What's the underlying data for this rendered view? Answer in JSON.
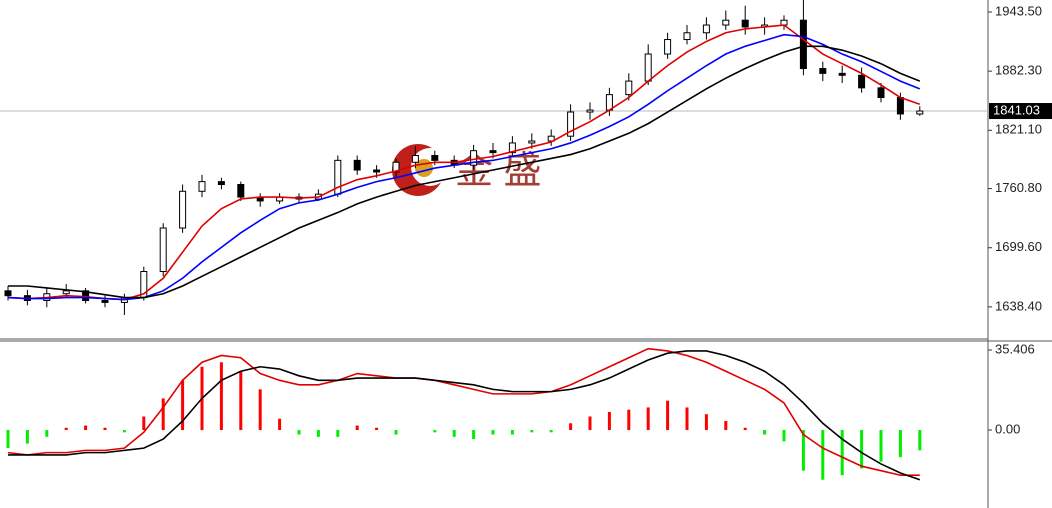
{
  "chart_data": [
    {
      "type": "candlestick",
      "watermark": "金 盛",
      "open": [
        1655,
        1650,
        1645,
        1652,
        1655,
        1645,
        1643,
        1648,
        1675,
        1720,
        1758,
        1768,
        1765,
        1752,
        1748,
        1752,
        1750,
        1755,
        1790,
        1780,
        1778,
        1788,
        1795,
        1790,
        1785,
        1800,
        1798,
        1808,
        1810,
        1815,
        1840,
        1842,
        1858,
        1872,
        1900,
        1915,
        1922,
        1930,
        1935,
        1928,
        1930,
        1935,
        1885,
        1880,
        1878,
        1865,
        1855,
        1838
      ],
      "high": [
        1660,
        1656,
        1658,
        1662,
        1658,
        1650,
        1652,
        1680,
        1725,
        1765,
        1775,
        1772,
        1768,
        1756,
        1756,
        1756,
        1760,
        1795,
        1795,
        1785,
        1792,
        1805,
        1800,
        1795,
        1806,
        1808,
        1815,
        1818,
        1822,
        1848,
        1850,
        1865,
        1880,
        1910,
        1922,
        1930,
        1938,
        1945,
        1950,
        1938,
        1940,
        1958,
        1892,
        1888,
        1886,
        1870,
        1860,
        1846
      ],
      "low": [
        1645,
        1640,
        1638,
        1648,
        1642,
        1638,
        1630,
        1645,
        1670,
        1715,
        1752,
        1760,
        1748,
        1742,
        1745,
        1746,
        1748,
        1752,
        1775,
        1772,
        1772,
        1782,
        1785,
        1782,
        1780,
        1792,
        1795,
        1802,
        1805,
        1810,
        1832,
        1836,
        1852,
        1868,
        1895,
        1910,
        1915,
        1925,
        1920,
        1920,
        1925,
        1878,
        1872,
        1870,
        1860,
        1850,
        1832,
        1836
      ],
      "close": [
        1650,
        1645,
        1652,
        1655,
        1645,
        1643,
        1648,
        1675,
        1720,
        1758,
        1768,
        1765,
        1752,
        1748,
        1752,
        1750,
        1755,
        1790,
        1780,
        1778,
        1788,
        1795,
        1790,
        1785,
        1800,
        1798,
        1808,
        1810,
        1815,
        1840,
        1842,
        1858,
        1872,
        1900,
        1915,
        1922,
        1930,
        1935,
        1928,
        1930,
        1935,
        1885,
        1880,
        1878,
        1865,
        1855,
        1838,
        1841.03
      ],
      "up_color": "#ffffff",
      "down_color": "#000000",
      "series": [
        {
          "color": "#e00000",
          "values": [
            1648,
            1647,
            1648,
            1650,
            1649,
            1647,
            1646,
            1652,
            1668,
            1695,
            1722,
            1740,
            1750,
            1752,
            1752,
            1751,
            1752,
            1762,
            1770,
            1774,
            1779,
            1785,
            1788,
            1788,
            1791,
            1794,
            1799,
            1804,
            1809,
            1820,
            1830,
            1842,
            1855,
            1872,
            1888,
            1902,
            1913,
            1922,
            1926,
            1928,
            1930,
            1915,
            1900,
            1890,
            1880,
            1868,
            1855,
            1848
          ]
        },
        {
          "color": "#0000ff",
          "values": [
            1648,
            1647,
            1647,
            1648,
            1648,
            1647,
            1646,
            1648,
            1655,
            1668,
            1685,
            1700,
            1715,
            1728,
            1740,
            1746,
            1749,
            1755,
            1762,
            1768,
            1772,
            1777,
            1782,
            1785,
            1788,
            1790,
            1794,
            1798,
            1802,
            1808,
            1816,
            1825,
            1835,
            1848,
            1862,
            1875,
            1888,
            1900,
            1908,
            1914,
            1920,
            1918,
            1910,
            1900,
            1892,
            1882,
            1872,
            1864
          ]
        },
        {
          "color": "#000000",
          "values": [
            1660,
            1660,
            1658,
            1656,
            1654,
            1651,
            1648,
            1648,
            1652,
            1660,
            1670,
            1680,
            1690,
            1700,
            1710,
            1720,
            1728,
            1736,
            1745,
            1752,
            1758,
            1764,
            1768,
            1772,
            1776,
            1780,
            1784,
            1788,
            1792,
            1796,
            1802,
            1810,
            1818,
            1828,
            1840,
            1852,
            1864,
            1875,
            1885,
            1894,
            1902,
            1908,
            1908,
            1904,
            1898,
            1890,
            1880,
            1872
          ]
        }
      ],
      "last_price": 1841.03,
      "ylim": [
        1606.2,
        1955.9
      ],
      "yticks": [
        {
          "value": 1943.5,
          "label": "1943.50"
        },
        {
          "value": 1882.3,
          "label": "1882.30"
        },
        {
          "value": 1821.1,
          "label": "1821.10"
        },
        {
          "value": 1760.8,
          "label": "1760.80"
        },
        {
          "value": 1699.6,
          "label": "1699.60"
        },
        {
          "value": 1638.4,
          "label": "1638.40"
        }
      ]
    },
    {
      "type": "macd",
      "histogram": [
        -8,
        -6,
        -3,
        1,
        2,
        1,
        -1,
        6,
        14,
        22,
        28,
        30,
        26,
        18,
        5,
        -2,
        -3,
        -3,
        2,
        1,
        -2,
        0,
        -1,
        -3,
        -4,
        -2,
        -2,
        -1,
        -1,
        3,
        6,
        8,
        9,
        10,
        13,
        10,
        7,
        4,
        1,
        -2,
        -5,
        -18,
        -22,
        -20,
        -17,
        -14,
        -12,
        -9
      ],
      "positive_color": "#ff0000",
      "negative_color": "#00ee00",
      "series": [
        {
          "color": "#e00000",
          "values": [
            -10,
            -11,
            -10,
            -10,
            -9,
            -9,
            -8,
            -1,
            10,
            22,
            30,
            33,
            32,
            25,
            22,
            20,
            20,
            22,
            25,
            24,
            23,
            23,
            22,
            20,
            18,
            16,
            16,
            16,
            17,
            20,
            24,
            28,
            32,
            36,
            35,
            33,
            30,
            26,
            22,
            18,
            12,
            -2,
            -8,
            -12,
            -16,
            -18,
            -20,
            -20
          ]
        },
        {
          "color": "#000000",
          "values": [
            -11,
            -11,
            -11,
            -11,
            -10,
            -10,
            -9,
            -8,
            -4,
            4,
            14,
            22,
            26,
            28,
            27,
            24,
            22,
            22,
            23,
            23,
            23,
            23,
            22,
            21,
            20,
            18,
            17,
            17,
            17,
            18,
            20,
            23,
            27,
            31,
            34,
            35,
            35,
            33,
            30,
            26,
            20,
            12,
            3,
            -4,
            -10,
            -15,
            -19,
            -22
          ]
        }
      ],
      "ylim": [
        -34.5,
        39.4
      ],
      "yticks": [
        35.406,
        {
          "value": 0,
          "label": "0.00"
        }
      ]
    }
  ]
}
